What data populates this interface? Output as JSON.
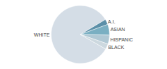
{
  "chart_data": {
    "type": "pie",
    "categories": [
      "WHITE",
      "A.I.",
      "ASIAN",
      "HISPANIC",
      "BLACK"
    ],
    "values": [
      83,
      3,
      6,
      5,
      3
    ],
    "colors": [
      "#d4dde6",
      "#5b8fa8",
      "#7aafc2",
      "#b0c8d4",
      "#ccd8df"
    ]
  }
}
